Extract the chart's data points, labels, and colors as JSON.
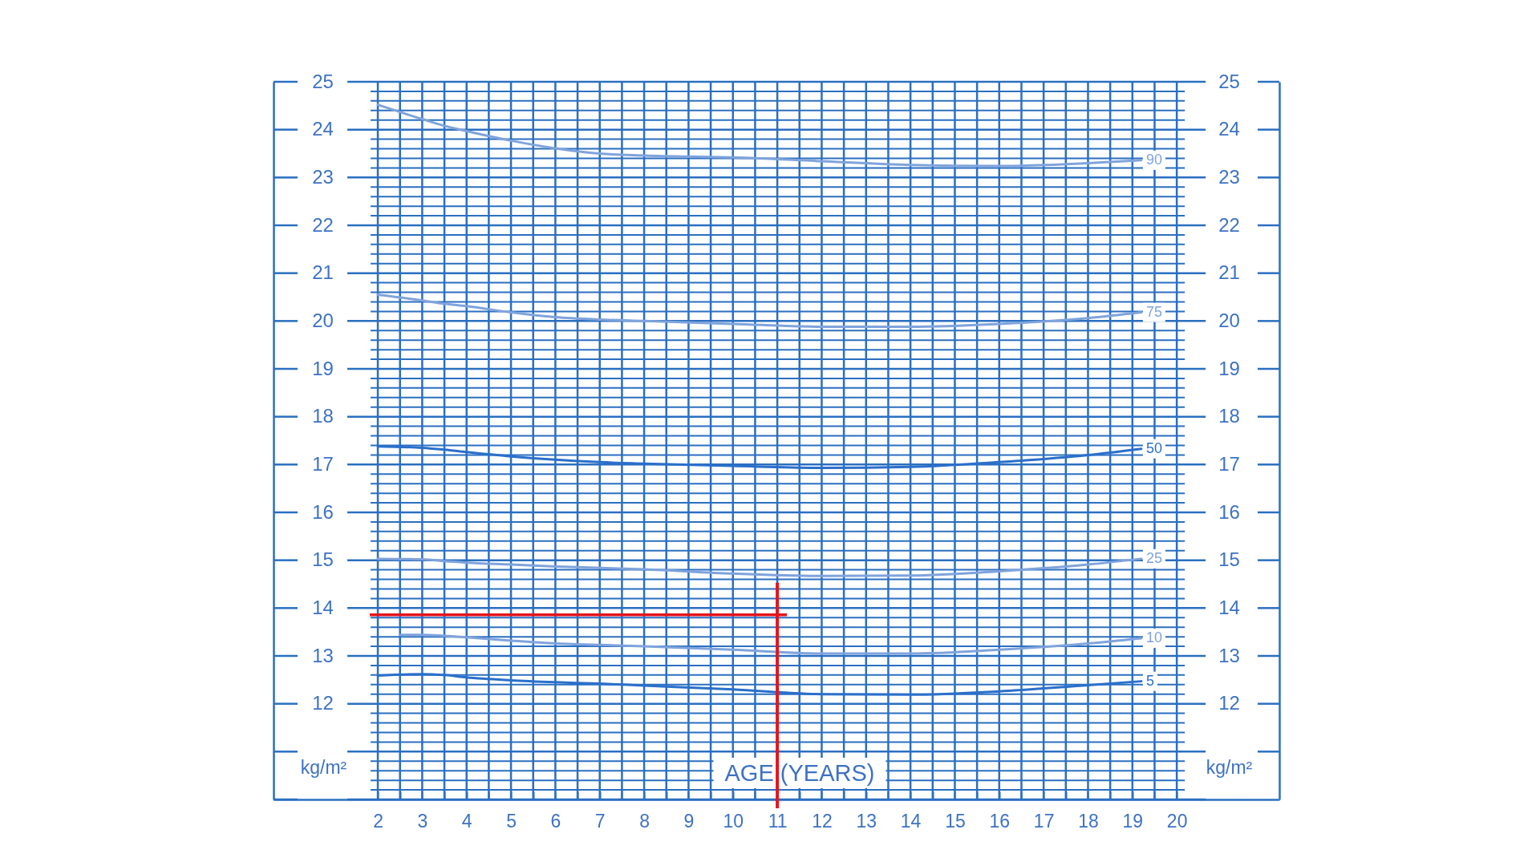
{
  "chart_data": {
    "type": "line",
    "xlabel": "AGE (YEARS)",
    "ylabel": "kg/m²",
    "y2label": "kg/m²",
    "x": [
      2,
      3,
      3.5,
      4,
      5,
      6,
      7,
      8,
      10,
      12,
      14,
      16,
      18,
      19.2
    ],
    "series": [
      {
        "name": "90",
        "color": "#7fa3dc",
        "values": [
          24.52,
          24.22,
          24.08,
          23.97,
          23.77,
          23.61,
          23.5,
          23.46,
          23.42,
          23.34,
          23.26,
          23.24,
          23.3,
          23.36
        ]
      },
      {
        "name": "75",
        "color": "#7fa3dc",
        "values": [
          20.55,
          20.43,
          20.36,
          20.31,
          20.18,
          20.08,
          20.03,
          20.0,
          19.94,
          19.88,
          19.88,
          19.94,
          20.06,
          20.18
        ]
      },
      {
        "name": "50",
        "color": "#2a6fcb",
        "values": [
          17.38,
          17.35,
          17.31,
          17.26,
          17.17,
          17.1,
          17.05,
          17.02,
          16.97,
          16.93,
          16.95,
          17.05,
          17.2,
          17.33
        ]
      },
      {
        "name": "25",
        "color": "#7fa3dc",
        "values": [
          15.03,
          15.02,
          14.98,
          14.95,
          14.91,
          14.87,
          14.84,
          14.81,
          14.72,
          14.67,
          14.68,
          14.77,
          14.91,
          15.03
        ]
      },
      {
        "name": "10",
        "color": "#7fa3dc",
        "x": [
          2.5,
          3,
          3.5,
          4,
          5,
          6,
          7,
          8,
          10,
          12,
          14,
          16,
          18,
          19.2
        ],
        "values": [
          13.44,
          13.44,
          13.42,
          13.39,
          13.32,
          13.26,
          13.23,
          13.2,
          13.13,
          13.05,
          13.05,
          13.13,
          13.26,
          13.37
        ]
      },
      {
        "name": "5",
        "color": "#2a6fcb",
        "values": [
          12.59,
          12.62,
          12.6,
          12.55,
          12.49,
          12.45,
          12.42,
          12.38,
          12.3,
          12.2,
          12.19,
          12.26,
          12.39,
          12.47
        ]
      }
    ],
    "xlim": [
      -0.35,
      22.31
    ],
    "ylim": [
      10,
      25
    ],
    "y2lim": [
      10,
      25
    ],
    "xticks": [
      2,
      {
        "value": 2.5,
        "label": null
      },
      3,
      {
        "value": 3.5,
        "label": null
      },
      4,
      {
        "value": 4.5,
        "label": null
      },
      5,
      {
        "value": 5.5,
        "label": null
      },
      6,
      {
        "value": 6.5,
        "label": null
      },
      7,
      {
        "value": 7.5,
        "label": null
      },
      8,
      {
        "value": 8.5,
        "label": null
      },
      9,
      {
        "value": 9.5,
        "label": null
      },
      10,
      {
        "value": 10.5,
        "label": null
      },
      11,
      {
        "value": 11.5,
        "label": null
      },
      12,
      {
        "value": 12.5,
        "label": null
      },
      13,
      {
        "value": 13.5,
        "label": null
      },
      14,
      {
        "value": 14.5,
        "label": null
      },
      15,
      {
        "value": 15.5,
        "label": null
      },
      16,
      {
        "value": 16.5,
        "label": null
      },
      17,
      {
        "value": 17.5,
        "label": null
      },
      18,
      {
        "value": 18.5,
        "label": null
      },
      19,
      {
        "value": 19.5,
        "label": null
      },
      20
    ],
    "yticks": [
      {
        "value": 10,
        "label": null
      },
      {
        "value": 10.2,
        "label": null
      },
      {
        "value": 10.4,
        "label": null
      },
      {
        "value": 10.6,
        "label": null
      },
      {
        "value": 10.8,
        "label": null
      },
      {
        "value": 11,
        "label": null
      },
      {
        "value": 11.2,
        "label": null
      },
      {
        "value": 11.4,
        "label": null
      },
      {
        "value": 11.6,
        "label": null
      },
      {
        "value": 11.8,
        "label": null
      },
      12,
      {
        "value": 12.2,
        "label": null
      },
      {
        "value": 12.4,
        "label": null
      },
      {
        "value": 12.6,
        "label": null
      },
      {
        "value": 12.8,
        "label": null
      },
      13,
      {
        "value": 13.2,
        "label": null
      },
      {
        "value": 13.4,
        "label": null
      },
      {
        "value": 13.6,
        "label": null
      },
      {
        "value": 13.8,
        "label": null
      },
      14,
      {
        "value": 14.2,
        "label": null
      },
      {
        "value": 14.4,
        "label": null
      },
      {
        "value": 14.6,
        "label": null
      },
      {
        "value": 14.8,
        "label": null
      },
      15,
      {
        "value": 15.2,
        "label": null
      },
      {
        "value": 15.4,
        "label": null
      },
      {
        "value": 15.6,
        "label": null
      },
      {
        "value": 15.8,
        "label": null
      },
      16,
      {
        "value": 16.2,
        "label": null
      },
      {
        "value": 16.4,
        "label": null
      },
      {
        "value": 16.6,
        "label": null
      },
      {
        "value": 16.8,
        "label": null
      },
      17,
      {
        "value": 17.2,
        "label": null
      },
      {
        "value": 17.4,
        "label": null
      },
      {
        "value": 17.6,
        "label": null
      },
      {
        "value": 17.8,
        "label": null
      },
      18,
      {
        "value": 18.2,
        "label": null
      },
      {
        "value": 18.4,
        "label": null
      },
      {
        "value": 18.6,
        "label": null
      },
      {
        "value": 18.8,
        "label": null
      },
      19,
      {
        "value": 19.2,
        "label": null
      },
      {
        "value": 19.4,
        "label": null
      },
      {
        "value": 19.6,
        "label": null
      },
      {
        "value": 19.8,
        "label": null
      },
      20,
      {
        "value": 20.2,
        "label": null
      },
      {
        "value": 20.4,
        "label": null
      },
      {
        "value": 20.6,
        "label": null
      },
      {
        "value": 20.8,
        "label": null
      },
      21,
      {
        "value": 21.2,
        "label": null
      },
      {
        "value": 21.4,
        "label": null
      },
      {
        "value": 21.6,
        "label": null
      },
      {
        "value": 21.8,
        "label": null
      },
      22,
      {
        "value": 22.2,
        "label": null
      },
      {
        "value": 22.4,
        "label": null
      },
      {
        "value": 22.6,
        "label": null
      },
      {
        "value": 22.8,
        "label": null
      },
      23,
      {
        "value": 23.2,
        "label": null
      },
      {
        "value": 23.4,
        "label": null
      },
      {
        "value": 23.6,
        "label": null
      },
      {
        "value": 23.8,
        "label": null
      },
      24,
      {
        "value": 24.2,
        "label": null
      },
      {
        "value": 24.4,
        "label": null
      },
      {
        "value": 24.6,
        "label": null
      },
      {
        "value": 24.8,
        "label": null
      },
      25
    ],
    "y2ticks": [
      {
        "value": 11,
        "label": null
      },
      12,
      13,
      14,
      15,
      16,
      17,
      18,
      19,
      20,
      21,
      22,
      23,
      24,
      25
    ],
    "ref_lines": [
      {
        "axis": "y",
        "value": 13.86,
        "color": "#e3141c"
      },
      {
        "axis": "x",
        "value": 11,
        "color": "#e3141c"
      }
    ],
    "grid": true
  }
}
